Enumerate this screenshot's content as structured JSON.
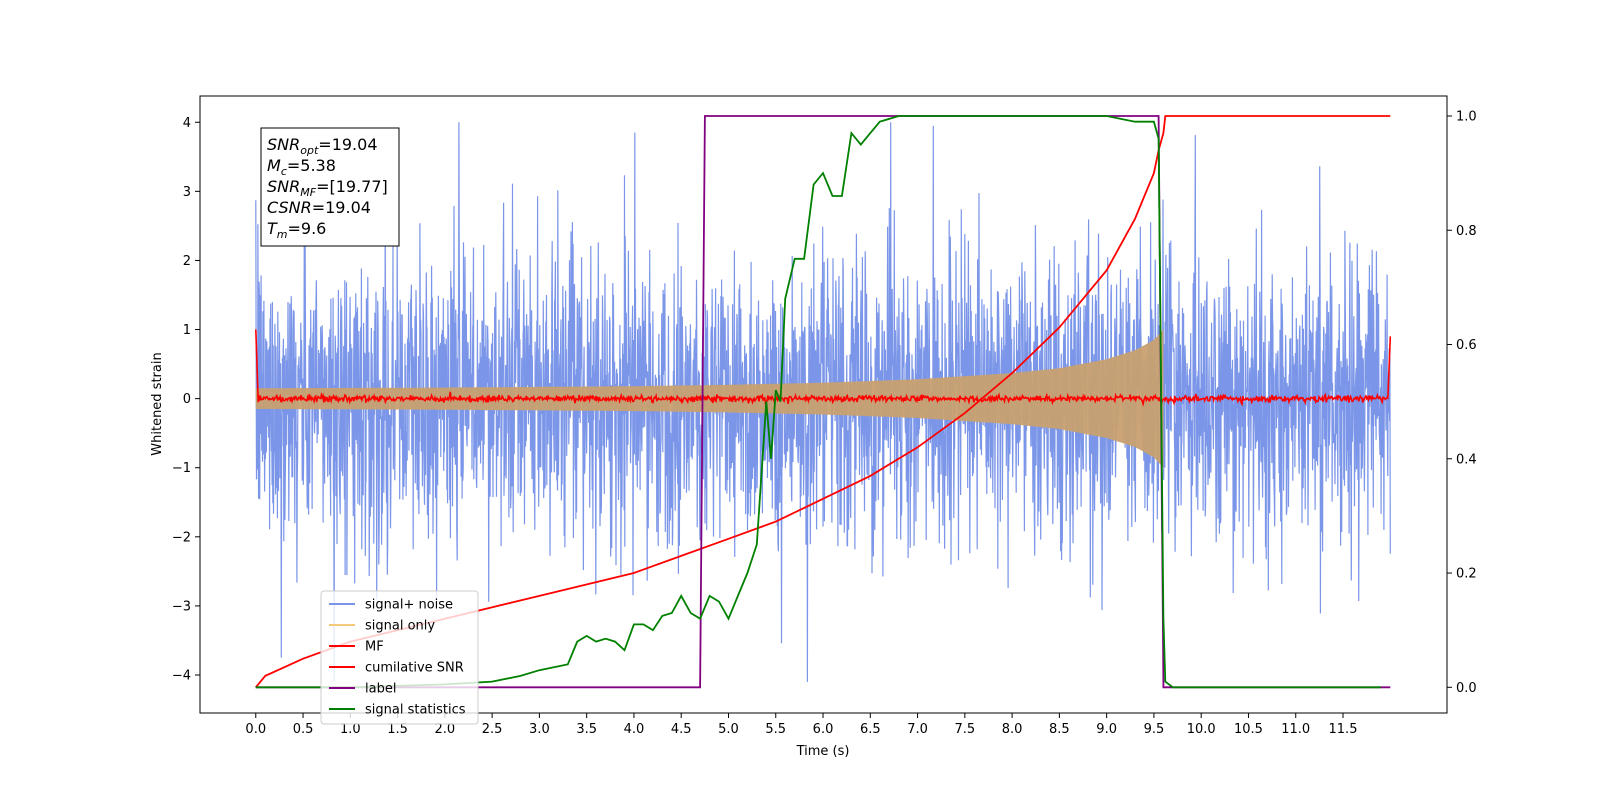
{
  "chart_data": {
    "type": "line",
    "title": "",
    "xlabel": "Time (s)",
    "ylabel_left": "Whitened strain",
    "ylabel_right": "",
    "xlim": [
      -0.59,
      12.6
    ],
    "ylim_left": [
      -4.55,
      4.38
    ],
    "ylim_right": [
      -0.045,
      1.035
    ],
    "x_ticks": [
      "0.0",
      "0.5",
      "1.0",
      "1.5",
      "2.0",
      "2.5",
      "3.0",
      "3.5",
      "4.0",
      "4.5",
      "5.0",
      "5.5",
      "6.0",
      "6.5",
      "7.0",
      "7.5",
      "8.0",
      "8.5",
      "9.0",
      "9.5",
      "10.0",
      "10.5",
      "11.0",
      "11.5"
    ],
    "y_ticks_left": [
      "−4",
      "−3",
      "−2",
      "−1",
      "0",
      "1",
      "2",
      "3",
      "4"
    ],
    "y_ticks_right": [
      "0.0",
      "0.2",
      "0.4",
      "0.6",
      "0.8",
      "1.0"
    ],
    "grid": false,
    "legend_position": "lower-left",
    "legend": [
      {
        "label": "signal+ noise",
        "color": "#7b96e8"
      },
      {
        "label": "signal only",
        "color": "#f5c97a"
      },
      {
        "label": "MF",
        "color": "#ff0000"
      },
      {
        "label": "cumilative SNR",
        "color": "#ff0000"
      },
      {
        "label": "label",
        "color": "#800080"
      },
      {
        "label": "signal statistics",
        "color": "#008000"
      }
    ],
    "annotation": [
      {
        "base": "SNR",
        "sub": "opt",
        "rest": "=19.04"
      },
      {
        "base": "M",
        "sub": "c",
        "rest": "=5.38"
      },
      {
        "base": "SNR",
        "sub": "MF",
        "rest": "=[19.77]"
      },
      {
        "base": "CSNR",
        "sub": "",
        "rest": "=19.04"
      },
      {
        "base": "T",
        "sub": "m",
        "rest": "=9.6"
      }
    ],
    "series": [
      {
        "name": "signal+ noise",
        "axis": "left",
        "color": "#7b96e8",
        "kind": "noise",
        "x_range": [
          0.0,
          12.0
        ],
        "typical_range": [
          -2.3,
          2.3
        ],
        "extreme_range": [
          -4.1,
          4.0
        ]
      },
      {
        "name": "signal only",
        "axis": "left",
        "color": "#c8a070",
        "kind": "chirp-envelope",
        "x": [
          0.0,
          2.0,
          4.0,
          5.0,
          6.0,
          7.0,
          8.0,
          8.5,
          9.0,
          9.3,
          9.5,
          9.6
        ],
        "amplitude": [
          0.15,
          0.16,
          0.18,
          0.2,
          0.23,
          0.28,
          0.37,
          0.44,
          0.57,
          0.7,
          0.85,
          1.0
        ]
      },
      {
        "name": "MF",
        "axis": "left",
        "color": "#ff0000",
        "kind": "noise",
        "x_range": [
          0.0,
          12.0
        ],
        "typical_range": [
          -0.05,
          0.05
        ],
        "extreme_range": [
          -0.08,
          0.15
        ],
        "edge_values": {
          "start": 1.0,
          "end": 0.9
        }
      },
      {
        "name": "cumilative SNR",
        "axis": "right",
        "color": "#ff0000",
        "x": [
          0.0,
          0.1,
          0.5,
          1.0,
          2.0,
          3.0,
          4.0,
          4.5,
          5.0,
          5.5,
          6.0,
          6.5,
          7.0,
          7.5,
          8.0,
          8.5,
          9.0,
          9.3,
          9.5,
          9.55,
          9.6,
          9.62,
          12.0
        ],
        "values": [
          0.0,
          0.02,
          0.05,
          0.08,
          0.12,
          0.16,
          0.2,
          0.23,
          0.26,
          0.29,
          0.33,
          0.37,
          0.42,
          0.48,
          0.55,
          0.63,
          0.73,
          0.82,
          0.9,
          0.94,
          0.97,
          1.0,
          1.0
        ]
      },
      {
        "name": "label",
        "axis": "right",
        "color": "#800080",
        "x": [
          0.0,
          4.7,
          4.75,
          9.55,
          9.6,
          9.6,
          12.0
        ],
        "values": [
          0.0,
          0.0,
          1.0,
          1.0,
          0.01,
          0.0,
          0.0
        ]
      },
      {
        "name": "signal statistics",
        "axis": "right",
        "color": "#008000",
        "x": [
          0.0,
          1.0,
          2.0,
          2.5,
          2.8,
          3.0,
          3.3,
          3.4,
          3.5,
          3.6,
          3.7,
          3.8,
          3.9,
          4.0,
          4.1,
          4.2,
          4.3,
          4.4,
          4.5,
          4.6,
          4.7,
          4.8,
          4.9,
          5.0,
          5.1,
          5.2,
          5.3,
          5.4,
          5.45,
          5.5,
          5.55,
          5.6,
          5.7,
          5.8,
          5.9,
          6.0,
          6.1,
          6.2,
          6.3,
          6.4,
          6.5,
          6.6,
          6.8,
          7.0,
          8.0,
          9.0,
          9.3,
          9.4,
          9.5,
          9.55,
          9.6,
          9.62,
          9.7,
          10.0,
          11.0,
          11.9
        ],
        "values": [
          0.0,
          0.0,
          0.005,
          0.01,
          0.02,
          0.03,
          0.04,
          0.08,
          0.09,
          0.08,
          0.085,
          0.08,
          0.065,
          0.11,
          0.11,
          0.1,
          0.125,
          0.13,
          0.16,
          0.13,
          0.12,
          0.16,
          0.15,
          0.12,
          0.16,
          0.2,
          0.25,
          0.5,
          0.4,
          0.52,
          0.5,
          0.68,
          0.75,
          0.75,
          0.88,
          0.9,
          0.86,
          0.86,
          0.97,
          0.95,
          0.97,
          0.99,
          1.0,
          1.0,
          1.0,
          1.0,
          0.99,
          0.99,
          0.99,
          0.96,
          0.12,
          0.01,
          0.0,
          0.0,
          0.0,
          0.0
        ]
      }
    ]
  }
}
